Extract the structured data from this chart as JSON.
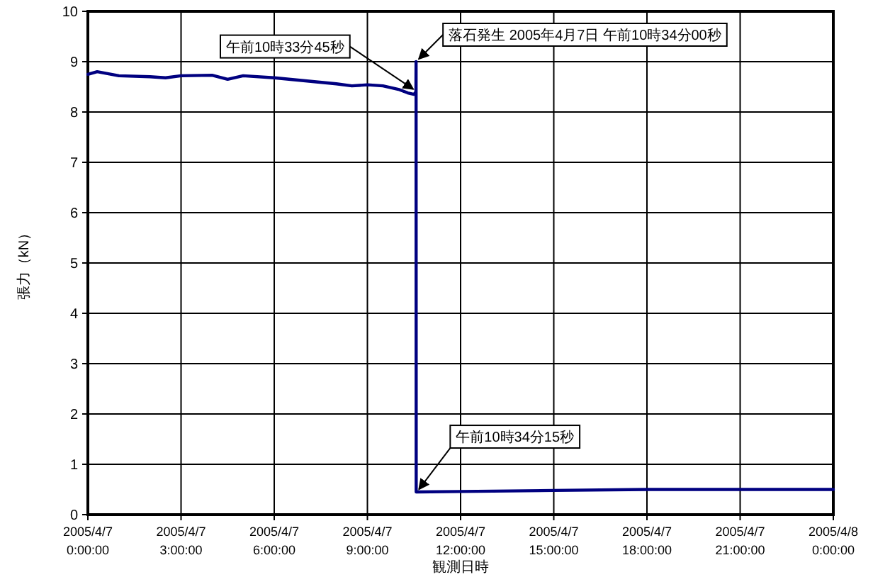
{
  "chart_data": {
    "type": "line",
    "xlabel": "観測日時",
    "ylabel": "張力（kN）",
    "x": [
      "2005-04-07T00:00",
      "2005-04-07T00:18",
      "2005-04-07T01:00",
      "2005-04-07T02:00",
      "2005-04-07T02:30",
      "2005-04-07T03:00",
      "2005-04-07T04:00",
      "2005-04-07T04:30",
      "2005-04-07T05:00",
      "2005-04-07T06:00",
      "2005-04-07T07:00",
      "2005-04-07T08:00",
      "2005-04-07T08:30",
      "2005-04-07T09:00",
      "2005-04-07T09:30",
      "2005-04-07T10:00",
      "2005-04-07T10:18",
      "2005-04-07T10:30",
      "2005-04-07T10:33:45",
      "2005-04-07T10:34:00",
      "2005-04-07T10:34:15",
      "2005-04-07T12:00",
      "2005-04-07T15:00",
      "2005-04-07T18:00",
      "2005-04-07T21:00",
      "2005-04-08T00:00"
    ],
    "series": [
      {
        "color": "#000080",
        "values": [
          8.75,
          8.8,
          8.72,
          8.7,
          8.68,
          8.72,
          8.73,
          8.65,
          8.72,
          8.68,
          8.62,
          8.56,
          8.52,
          8.54,
          8.52,
          8.45,
          8.38,
          8.35,
          8.4,
          9.0,
          0.45,
          0.46,
          0.48,
          0.5,
          0.5,
          0.5
        ]
      }
    ],
    "xlim": [
      "2005-04-07T00:00",
      "2005-04-08T00:00"
    ],
    "xticks": [
      {
        "value": "2005-04-07T00:00",
        "label": "2005/4/7\n0:00:00"
      },
      {
        "value": "2005-04-07T03:00",
        "label": "2005/4/7\n3:00:00"
      },
      {
        "value": "2005-04-07T06:00",
        "label": "2005/4/7\n6:00:00"
      },
      {
        "value": "2005-04-07T09:00",
        "label": "2005/4/7\n9:00:00"
      },
      {
        "value": "2005-04-07T12:00",
        "label": "2005/4/7\n12:00:00"
      },
      {
        "value": "2005-04-07T15:00",
        "label": "2005/4/7\n15:00:00"
      },
      {
        "value": "2005-04-07T18:00",
        "label": "2005/4/7\n18:00:00"
      },
      {
        "value": "2005-04-07T21:00",
        "label": "2005/4/7\n21:00:00"
      },
      {
        "value": "2005-04-08T00:00",
        "label": "2005/4/8\n0:00:00"
      }
    ],
    "ylim": [
      0,
      10
    ],
    "yticks": [
      0,
      1,
      2,
      3,
      4,
      5,
      6,
      7,
      8,
      9,
      10
    ],
    "grid": true,
    "marker": "none",
    "line_style": "solid",
    "annotations": [
      {
        "text": "午前10時33分45秒",
        "x": "2005-04-07T10:33:45",
        "y": 8.4
      },
      {
        "text": "落石発生  2005年4月7日  午前10時34分00秒",
        "x": "2005-04-07T10:34:00",
        "y": 9.0
      },
      {
        "text": "午前10時34分15秒",
        "x": "2005-04-07T10:34:15",
        "y": 0.45
      }
    ]
  }
}
